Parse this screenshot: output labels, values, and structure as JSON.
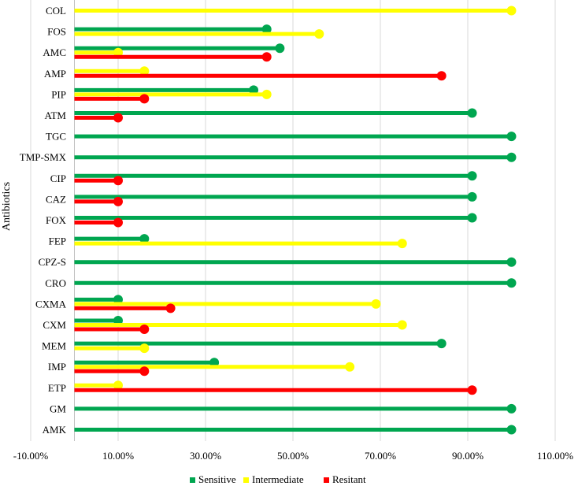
{
  "chart_data": {
    "type": "bar",
    "orientation": "horizontal",
    "style": "lollipop",
    "ylabel": "Antibiotics",
    "xlabel": "",
    "xlim": [
      -0.1,
      1.1
    ],
    "xticks": [
      -0.1,
      0.1,
      0.3,
      0.5,
      0.7,
      0.9,
      1.1
    ],
    "xtick_labels": [
      "-10.00%",
      "10.00%",
      "30.00%",
      "50.00%",
      "70.00%",
      "90.00%",
      "110.00%"
    ],
    "categories": [
      "COL",
      "FOS",
      "AMC",
      "AMP",
      "PIP",
      "ATM",
      "TGC",
      "TMP-SMX",
      "CIP",
      "CAZ",
      "FOX",
      "FEP",
      "CPZ-S",
      "CRO",
      "CXMA",
      "CXM",
      "MEM",
      "IMP",
      "ETP",
      "GM",
      "AMK"
    ],
    "series": [
      {
        "name": "Sensitive",
        "color": "#00a650",
        "values": [
          null,
          0.44,
          0.47,
          null,
          0.41,
          0.91,
          1.0,
          1.0,
          0.91,
          0.91,
          0.91,
          0.16,
          1.0,
          1.0,
          0.1,
          0.1,
          0.84,
          0.32,
          null,
          1.0,
          1.0
        ]
      },
      {
        "name": "Intermediate",
        "color": "#ffff00",
        "values": [
          1.0,
          0.56,
          0.1,
          0.16,
          0.44,
          null,
          null,
          null,
          null,
          null,
          null,
          0.75,
          null,
          null,
          0.69,
          0.75,
          0.16,
          0.63,
          0.1,
          null,
          null
        ]
      },
      {
        "name": "Resitant",
        "color": "#ff0000",
        "values": [
          null,
          null,
          0.44,
          0.84,
          0.16,
          0.1,
          null,
          null,
          0.1,
          0.1,
          0.1,
          null,
          null,
          null,
          0.22,
          0.16,
          null,
          0.16,
          0.91,
          null,
          null
        ]
      }
    ],
    "legend_position": "bottom"
  }
}
